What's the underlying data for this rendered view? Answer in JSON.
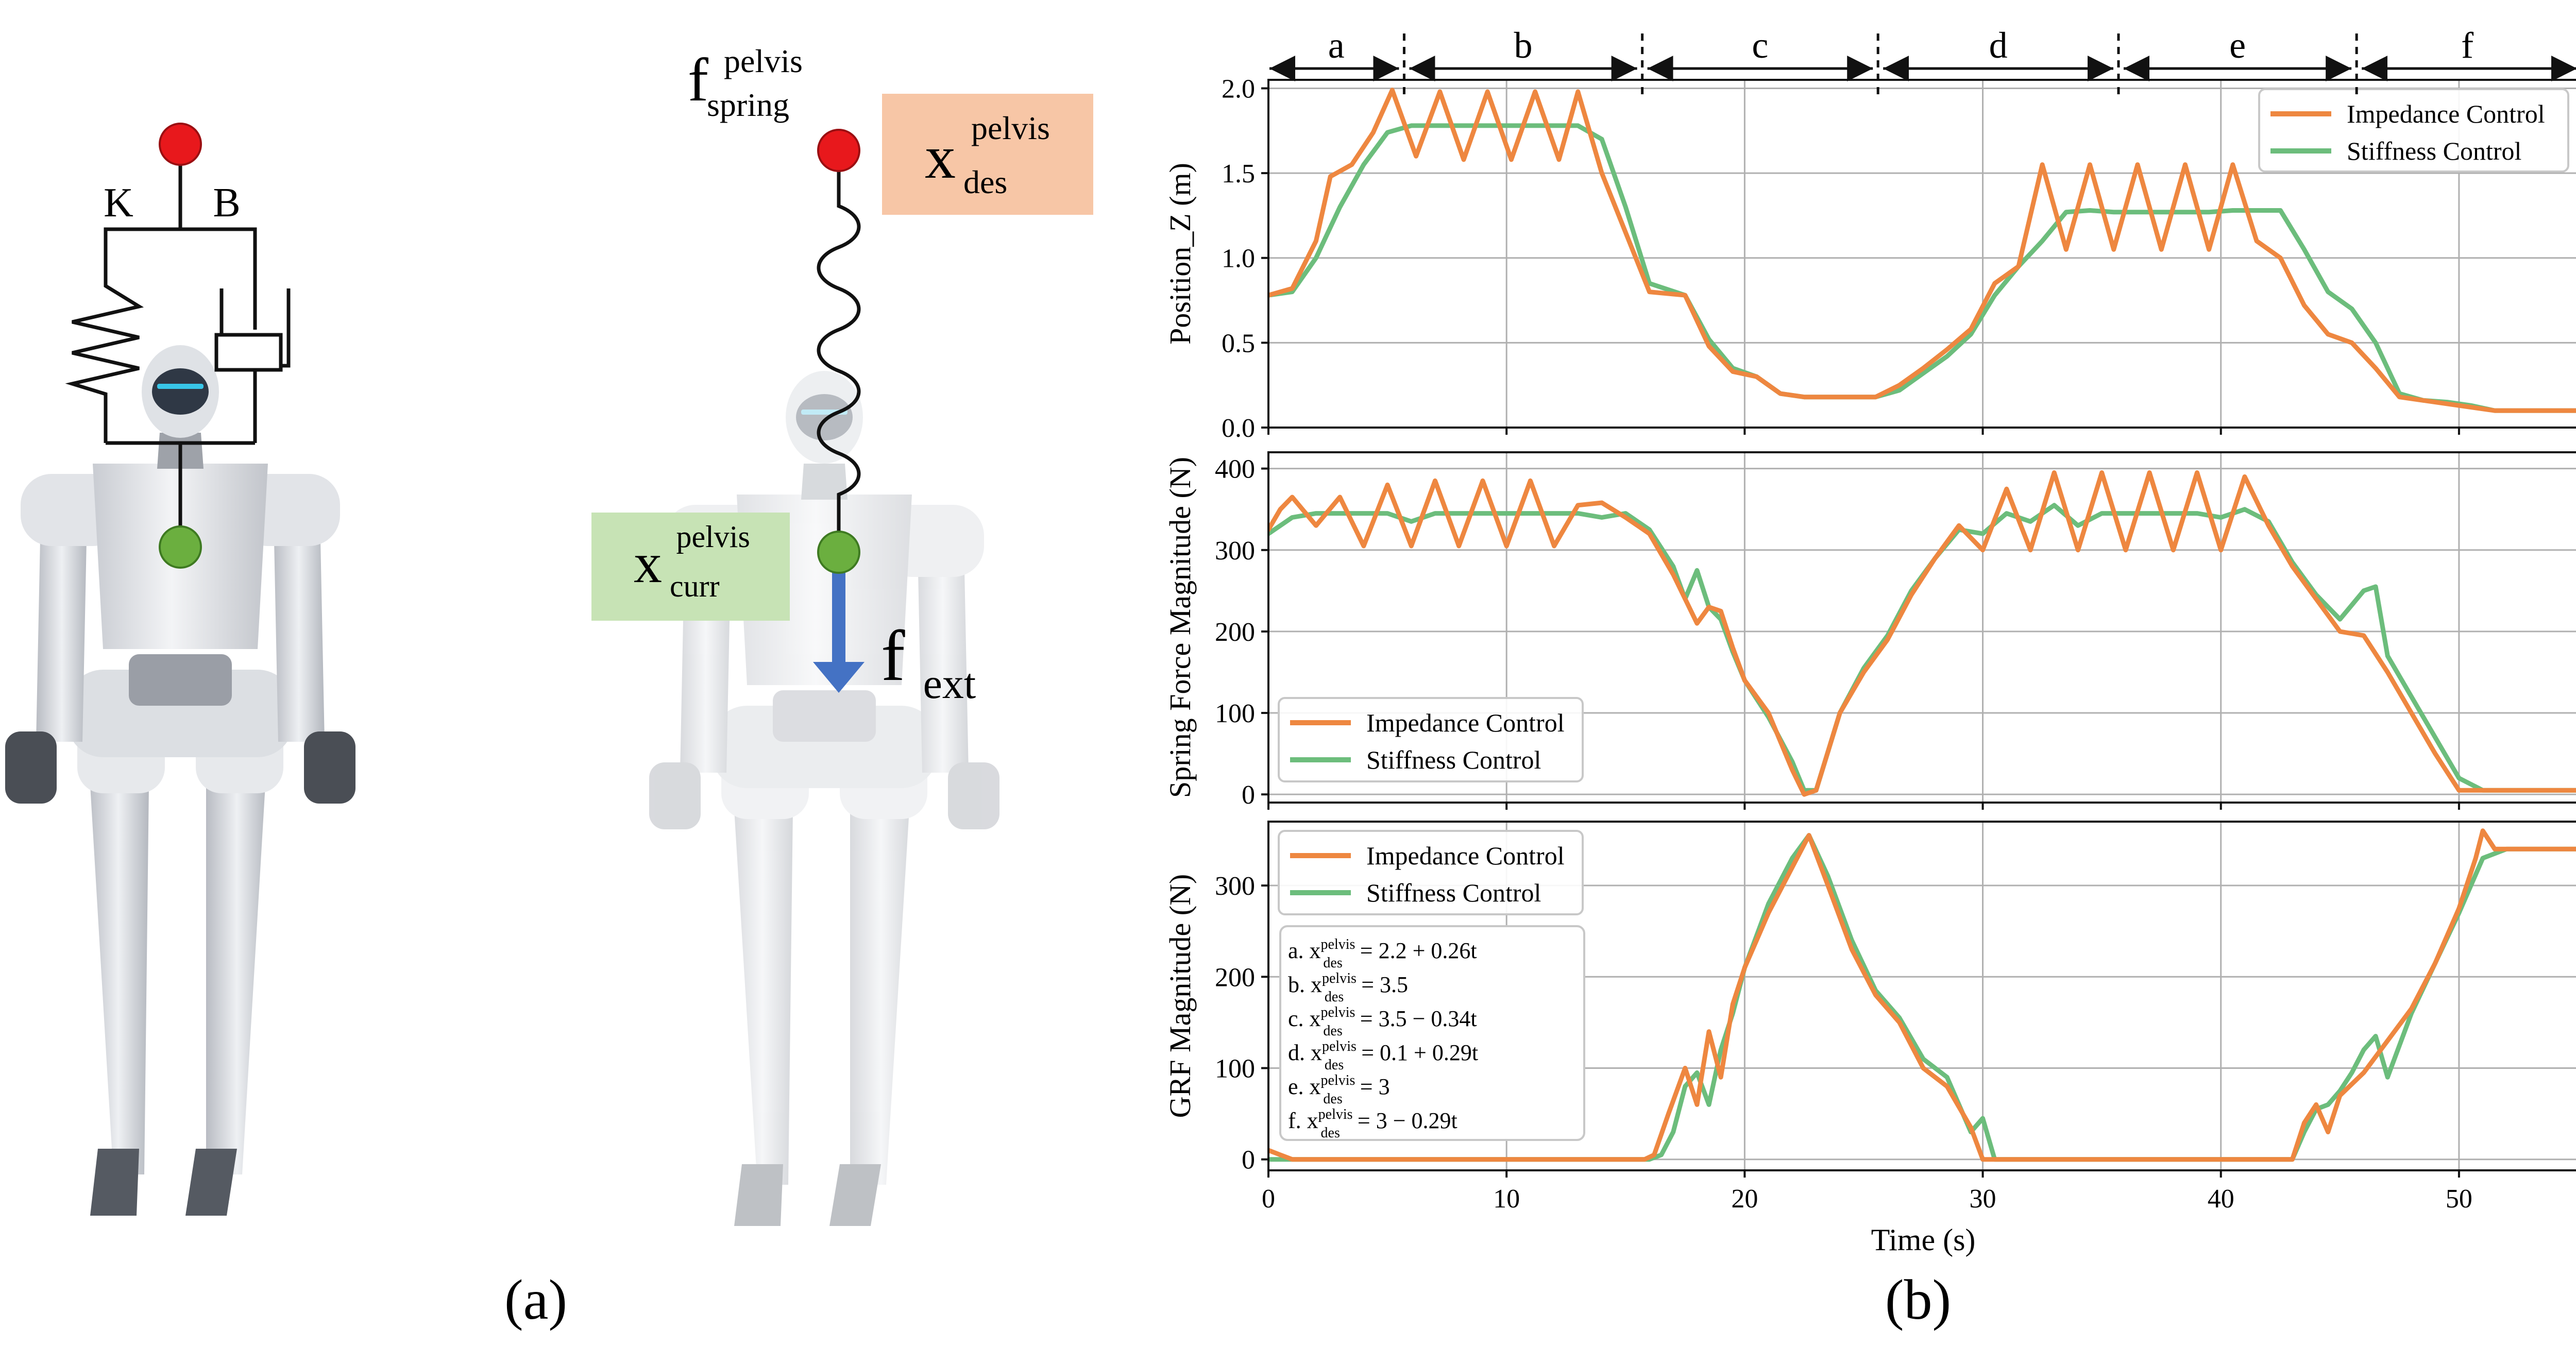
{
  "colors": {
    "impedance": "#EE8740",
    "stiffness": "#6CBD7C",
    "ball_top": "#E8181C",
    "ball_body": "#6BAF3F",
    "force_arrow": "#4472C4",
    "des_box": "#F7C6A6",
    "curr_box": "#C7E3B5"
  },
  "panel_a": {
    "caption": "(a)",
    "left_robot": {
      "k_label": "K",
      "b_label": "B"
    },
    "right_robot": {
      "f_spring": {
        "main": "f",
        "sup": "pelvis",
        "sub": "spring"
      },
      "x_des": {
        "main": "x",
        "sup": "pelvis",
        "sub": "des"
      },
      "x_curr": {
        "main": "x",
        "sup": "pelvis",
        "sub": "curr"
      },
      "f_ext": {
        "main": "f",
        "sub": "ext"
      }
    }
  },
  "panel_b": {
    "caption": "(b)",
    "phases": [
      "a",
      "b",
      "c",
      "d",
      "e",
      "f"
    ],
    "formulas": [
      {
        "prefix": "a. x",
        "sup": "pelvis",
        "sub": "des",
        "rhs": "= 2.2 + 0.26t"
      },
      {
        "prefix": "b. x",
        "sup": "pelvis",
        "sub": "des",
        "rhs": "= 3.5"
      },
      {
        "prefix": "c. x",
        "sup": "pelvis",
        "sub": "des",
        "rhs": "= 3.5 − 0.34t"
      },
      {
        "prefix": "d. x",
        "sup": "pelvis",
        "sub": "des",
        "rhs": "= 0.1 + 0.29t"
      },
      {
        "prefix": "e. x",
        "sup": "pelvis",
        "sub": "des",
        "rhs": "= 3"
      },
      {
        "prefix": "f. x",
        "sup": "pelvis",
        "sub": "des",
        "rhs": "= 3 − 0.29t"
      }
    ]
  },
  "chart_data": [
    {
      "type": "line",
      "ylabel": "Position_Z (m)",
      "xlabel": "",
      "xlim": [
        0,
        55
      ],
      "ylim": [
        0,
        2.05
      ],
      "xticks": [
        0,
        10,
        20,
        30,
        40,
        50
      ],
      "yticks": [
        0.0,
        0.5,
        1.0,
        1.5,
        2.0
      ],
      "ytick_labels": [
        "0.0",
        "0.5",
        "1.0",
        "1.5",
        "2.0"
      ],
      "grid": true,
      "legend_position": "top-right",
      "phase_boundaries": [
        0,
        5.7,
        15.7,
        25.6,
        35.7,
        45.7,
        55
      ],
      "series": [
        {
          "name": "Impedance Control",
          "x": [
            0,
            1,
            2,
            2.6,
            3.5,
            4.4,
            5.2,
            6.2,
            7.2,
            8.2,
            9.2,
            10.2,
            11.2,
            12.2,
            13.0,
            14.0,
            15.0,
            16.0,
            17.5,
            18.5,
            19.5,
            20.5,
            21.5,
            22.5,
            23.5,
            24.5,
            25.5,
            26.5,
            27.5,
            28.5,
            29.5,
            30.5,
            31.0,
            31.5,
            32.5,
            33.5,
            34.5,
            35.5,
            36.5,
            37.5,
            38.5,
            39.5,
            40.5,
            41.5,
            42.5,
            43.5,
            44.5,
            45.5,
            46.5,
            47.5,
            48.5,
            49.5,
            50.5,
            51.5,
            53.0,
            55.0
          ],
          "values": [
            0.78,
            0.82,
            1.1,
            1.48,
            1.55,
            1.74,
            1.99,
            1.6,
            1.98,
            1.58,
            1.98,
            1.58,
            1.98,
            1.58,
            1.98,
            1.5,
            1.15,
            0.8,
            0.78,
            0.48,
            0.33,
            0.3,
            0.2,
            0.18,
            0.18,
            0.18,
            0.18,
            0.25,
            0.35,
            0.46,
            0.58,
            0.85,
            0.9,
            0.95,
            1.55,
            1.05,
            1.55,
            1.05,
            1.55,
            1.05,
            1.55,
            1.05,
            1.55,
            1.1,
            1.0,
            0.72,
            0.55,
            0.5,
            0.35,
            0.18,
            0.16,
            0.14,
            0.12,
            0.1,
            0.1,
            0.1
          ]
        },
        {
          "name": "Stiffness Control",
          "x": [
            0,
            1,
            2,
            3,
            4,
            5,
            6,
            7,
            8,
            9,
            10,
            11,
            12,
            13,
            14,
            15,
            16,
            17.5,
            18.5,
            19.5,
            20.5,
            21.5,
            22.5,
            23.5,
            24.5,
            25.5,
            26.5,
            27.5,
            28.5,
            29.5,
            30.5,
            31.5,
            32.5,
            33.5,
            34.5,
            35.5,
            36.5,
            37.5,
            38.5,
            39.5,
            40.5,
            41.5,
            42.5,
            43.5,
            44.5,
            45.5,
            46.5,
            47.5,
            48.5,
            49.5,
            50.5,
            51.5,
            53.0,
            55.0
          ],
          "values": [
            0.78,
            0.8,
            1.0,
            1.3,
            1.55,
            1.74,
            1.78,
            1.78,
            1.78,
            1.78,
            1.78,
            1.78,
            1.78,
            1.78,
            1.7,
            1.3,
            0.85,
            0.78,
            0.52,
            0.35,
            0.3,
            0.2,
            0.18,
            0.18,
            0.18,
            0.18,
            0.22,
            0.32,
            0.42,
            0.55,
            0.78,
            0.95,
            1.1,
            1.27,
            1.28,
            1.27,
            1.27,
            1.27,
            1.27,
            1.27,
            1.28,
            1.28,
            1.28,
            1.05,
            0.8,
            0.7,
            0.5,
            0.2,
            0.16,
            0.15,
            0.13,
            0.1,
            0.1,
            0.1
          ]
        }
      ]
    },
    {
      "type": "line",
      "ylabel": "Spring Force Magnitude (N)",
      "xlabel": "",
      "xlim": [
        0,
        55
      ],
      "ylim": [
        -10,
        420
      ],
      "xticks": [
        0,
        10,
        20,
        30,
        40,
        50
      ],
      "yticks": [
        0,
        100,
        200,
        300,
        400
      ],
      "ytick_labels": [
        "0",
        "100",
        "200",
        "300",
        "400"
      ],
      "grid": true,
      "legend_position": "bottom-left",
      "series": [
        {
          "name": "Impedance Control",
          "x": [
            0,
            0.5,
            1,
            2,
            3,
            4,
            5,
            6,
            7,
            8,
            9,
            10,
            11,
            12,
            13,
            14,
            15,
            16,
            17,
            18,
            18.5,
            19,
            19.5,
            20,
            21,
            22,
            22.5,
            23,
            24,
            25,
            26,
            27,
            28,
            29,
            30,
            31,
            32,
            33,
            34,
            35,
            36,
            37,
            38,
            39,
            40,
            41,
            42,
            43,
            44,
            45,
            46,
            47,
            48,
            49,
            50,
            51,
            52,
            53,
            55
          ],
          "values": [
            325,
            350,
            365,
            330,
            365,
            305,
            380,
            305,
            385,
            305,
            385,
            305,
            385,
            305,
            355,
            358,
            340,
            320,
            270,
            210,
            230,
            225,
            180,
            140,
            100,
            30,
            0,
            5,
            100,
            150,
            190,
            245,
            290,
            330,
            300,
            375,
            300,
            395,
            300,
            395,
            300,
            395,
            300,
            395,
            300,
            390,
            330,
            280,
            240,
            200,
            195,
            150,
            100,
            50,
            5,
            5,
            5,
            5,
            5
          ]
        },
        {
          "name": "Stiffness Control",
          "x": [
            0,
            1,
            2,
            3,
            4,
            5,
            6,
            7,
            8,
            9,
            10,
            11,
            12,
            13,
            14,
            15,
            16,
            17,
            17.5,
            18,
            18.5,
            19,
            19.5,
            20,
            21,
            22,
            22.5,
            23,
            24,
            25,
            26,
            27,
            28,
            29,
            30,
            31,
            32,
            33,
            34,
            35,
            36,
            37,
            38,
            39,
            40,
            41,
            42,
            43,
            44,
            45,
            46,
            46.5,
            47,
            48,
            49,
            50,
            51,
            52,
            53,
            55
          ],
          "values": [
            320,
            340,
            345,
            345,
            345,
            345,
            335,
            345,
            345,
            345,
            345,
            345,
            345,
            345,
            340,
            345,
            325,
            280,
            240,
            275,
            230,
            215,
            175,
            140,
            95,
            40,
            5,
            5,
            100,
            155,
            195,
            250,
            290,
            325,
            320,
            345,
            335,
            355,
            330,
            345,
            345,
            345,
            345,
            345,
            340,
            350,
            335,
            285,
            245,
            215,
            250,
            255,
            170,
            120,
            70,
            20,
            5,
            5,
            5,
            5
          ]
        }
      ]
    },
    {
      "type": "line",
      "ylabel": "GRF Magnitude (N)",
      "xlabel": "Time (s)",
      "xlim": [
        0,
        55
      ],
      "ylim": [
        -12,
        370
      ],
      "xticks": [
        0,
        10,
        20,
        30,
        40,
        50
      ],
      "xtick_labels": [
        "0",
        "10",
        "20",
        "30",
        "40",
        "50"
      ],
      "yticks": [
        0,
        100,
        200,
        300
      ],
      "ytick_labels": [
        "0",
        "100",
        "200",
        "300"
      ],
      "grid": true,
      "legend_position": "top-left",
      "series": [
        {
          "name": "Impedance Control",
          "x": [
            0,
            0.5,
            1,
            5,
            10,
            15,
            15.8,
            16.2,
            16.8,
            17.5,
            18,
            18.5,
            19,
            19.5,
            20,
            21,
            22,
            22.7,
            23.5,
            24.5,
            25.5,
            26.5,
            27.5,
            28.5,
            29.5,
            30,
            30.5,
            35,
            40,
            43,
            43.5,
            44,
            44.5,
            45,
            46,
            47,
            48,
            49,
            50,
            50.7,
            51,
            51.5,
            52,
            55
          ],
          "values": [
            10,
            5,
            0,
            0,
            0,
            0,
            0,
            5,
            50,
            100,
            60,
            140,
            90,
            170,
            210,
            270,
            320,
            355,
            300,
            230,
            180,
            150,
            100,
            80,
            35,
            0,
            0,
            0,
            0,
            0,
            40,
            60,
            30,
            70,
            95,
            130,
            165,
            215,
            275,
            330,
            360,
            340,
            340,
            340
          ]
        },
        {
          "name": "Stiffness Control",
          "x": [
            0,
            0.5,
            1,
            5,
            10,
            15,
            16,
            16.5,
            17,
            17.5,
            18,
            18.5,
            19,
            19.5,
            20,
            21,
            22,
            22.7,
            23.5,
            24.5,
            25.5,
            26.5,
            27.5,
            28.5,
            29.5,
            30,
            30.5,
            35,
            40,
            43,
            43.5,
            44,
            44.5,
            45,
            45.5,
            46,
            46.5,
            47,
            48,
            49,
            50,
            51,
            52,
            55
          ],
          "values": [
            0,
            0,
            0,
            0,
            0,
            0,
            0,
            5,
            30,
            80,
            95,
            60,
            120,
            160,
            210,
            280,
            330,
            355,
            310,
            240,
            185,
            155,
            110,
            90,
            30,
            45,
            0,
            0,
            0,
            0,
            30,
            55,
            60,
            75,
            95,
            120,
            135,
            90,
            160,
            215,
            270,
            330,
            340,
            340
          ]
        }
      ]
    }
  ]
}
